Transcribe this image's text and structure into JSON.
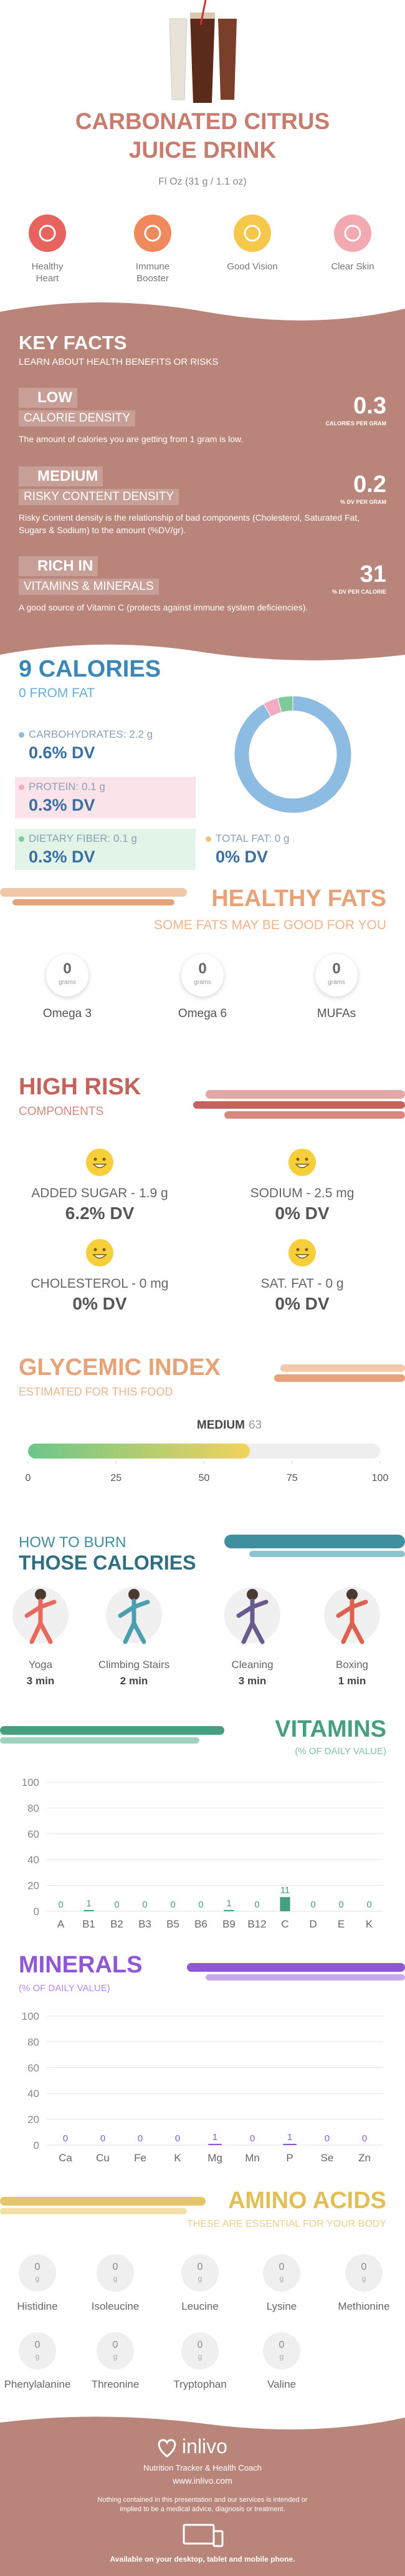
{
  "header": {
    "title": "CARBONATED CITRUS JUICE DRINK",
    "serving": "Fl Oz (31 g / 1.1 oz)",
    "benefits": [
      "Healthy Heart",
      "Immune Booster",
      "Good Vision",
      "Clear Skin"
    ]
  },
  "key_facts": {
    "title": "KEY FACTS",
    "subtitle": "LEARN ABOUT HEALTH BENEFITS OR RISKS",
    "facts": [
      {
        "level": "LOW",
        "name": "CALORIE DENSITY",
        "description": "The amount of calories you are getting from 1 gram is low.",
        "value": 0.3,
        "unit": "CALORIES PER GRAM"
      },
      {
        "level": "MEDIUM",
        "name": "RISKY CONTENT DENSITY",
        "description": "Risky Content density is the relationship of bad components (Cholesterol, Saturated Fat, Sugars & Sodium) to the amount (%DV/gr).",
        "value": 0.2,
        "unit": "% DV PER GRAM"
      },
      {
        "level": "RICH IN",
        "name": "VITAMINS & MINERALS",
        "description": "A good source of Vitamin C (protects against immune system deficiencies).",
        "value": 31,
        "unit": "% DV PER CALORIE"
      }
    ]
  },
  "calories": {
    "title": "9 CALORIES",
    "subtitle": "0 FROM FAT",
    "nutrients": [
      {
        "label": "CARBOHYDRATES: 2.2 g",
        "dv": "0.6% DV"
      },
      {
        "label": "PROTEIN: 0.1 g",
        "dv": "0.3% DV"
      },
      {
        "label": "DIETARY FIBER: 0.1 g",
        "dv": "0.3% DV"
      },
      {
        "label": "TOTAL FAT: 0 g",
        "dv": "0% DV"
      }
    ],
    "chart": {
      "type": "pie",
      "values": [
        2.2,
        0.1,
        0.1,
        0
      ],
      "colors": [
        "#8dbce3",
        "#f4a9c4",
        "#7fcb9c",
        "#f5c46e"
      ]
    }
  },
  "healthy_fats": {
    "title": "HEALTHY FATS",
    "subtitle": "SOME FATS MAY BE GOOD FOR YOU",
    "items": [
      {
        "name": "Omega 3",
        "value": 0,
        "unit": "grams"
      },
      {
        "name": "Omega 6",
        "value": 0,
        "unit": "grams"
      },
      {
        "name": "MUFAs",
        "value": 0,
        "unit": "grams"
      }
    ]
  },
  "high_risk": {
    "title": "HIGH RISK",
    "subtitle": "COMPONENTS",
    "items": [
      {
        "label": "ADDED SUGAR - 1.9 g",
        "dv": "6.2% DV"
      },
      {
        "label": "SODIUM - 2.5 mg",
        "dv": "0% DV"
      },
      {
        "label": "CHOLESTEROL - 0 mg",
        "dv": "0% DV"
      },
      {
        "label": "SAT. FAT - 0 g",
        "dv": "0% DV"
      }
    ]
  },
  "glycemic": {
    "title": "GLYCEMIC INDEX",
    "subtitle": "ESTIMATED FOR THIS FOOD",
    "level": "MEDIUM",
    "value": 63,
    "range": [
      0,
      100
    ],
    "ticks": [
      0,
      25,
      50,
      75,
      100
    ]
  },
  "burn": {
    "title_1": "HOW TO BURN",
    "title_2": "THOSE CALORIES",
    "activities": [
      {
        "name": "Yoga",
        "time": "3 min"
      },
      {
        "name": "Climbing Stairs",
        "time": "2 min"
      },
      {
        "name": "Cleaning",
        "time": "3 min"
      },
      {
        "name": "Boxing",
        "time": "1 min"
      }
    ]
  },
  "vitamins": {
    "title": "VITAMINS",
    "subtitle": "(% OF DAILY VALUE)",
    "chart": {
      "type": "bar",
      "categories": [
        "A",
        "B1",
        "B2",
        "B3",
        "B5",
        "B6",
        "B9",
        "B12",
        "C",
        "D",
        "E",
        "K"
      ],
      "values": [
        0,
        1,
        0,
        0,
        0,
        0,
        1,
        0,
        11,
        0,
        0,
        0
      ],
      "color": "#45a07f",
      "ylim": [
        0,
        100
      ],
      "yticks": [
        0,
        20,
        40,
        60,
        80,
        100
      ],
      "grid": true
    }
  },
  "minerals": {
    "title": "MINERALS",
    "subtitle": "(% OF DAILY VALUE)",
    "chart": {
      "type": "bar",
      "categories": [
        "Ca",
        "Cu",
        "Fe",
        "K",
        "Mg",
        "Mn",
        "P",
        "Se",
        "Zn"
      ],
      "values": [
        0,
        0,
        0,
        0,
        1,
        0,
        1,
        0,
        0
      ],
      "color": "#8f57d3",
      "ylim": [
        0,
        100
      ],
      "yticks": [
        0,
        20,
        40,
        60,
        80,
        100
      ],
      "grid": true
    }
  },
  "amino_acids": {
    "title": "AMINO ACIDS",
    "subtitle": "THESE ARE ESSENTIAL FOR YOUR BODY",
    "items": [
      {
        "name": "Histidine",
        "value": 0,
        "unit": "g"
      },
      {
        "name": "Isoleucine",
        "value": 0,
        "unit": "g"
      },
      {
        "name": "Leucine",
        "value": 0,
        "unit": "g"
      },
      {
        "name": "Lysine",
        "value": 0,
        "unit": "g"
      },
      {
        "name": "Methionine",
        "value": 0,
        "unit": "g"
      },
      {
        "name": "Phenylalanine",
        "value": 0,
        "unit": "g"
      },
      {
        "name": "Threonine",
        "value": 0,
        "unit": "g"
      },
      {
        "name": "Tryptophan",
        "value": 0,
        "unit": "g"
      },
      {
        "name": "Valine",
        "value": 0,
        "unit": "g"
      }
    ]
  },
  "footer": {
    "brand": "inlivo",
    "tagline": "Nutrition Tracker & Health Coach",
    "url": "www.inlivo.com",
    "disclaimer": "Nothing contained in this presentation and our services is intended or implied to be a medical advice, diagnosis or treatment.",
    "availability": "Available on your desktop, tablet and mobile phone."
  }
}
